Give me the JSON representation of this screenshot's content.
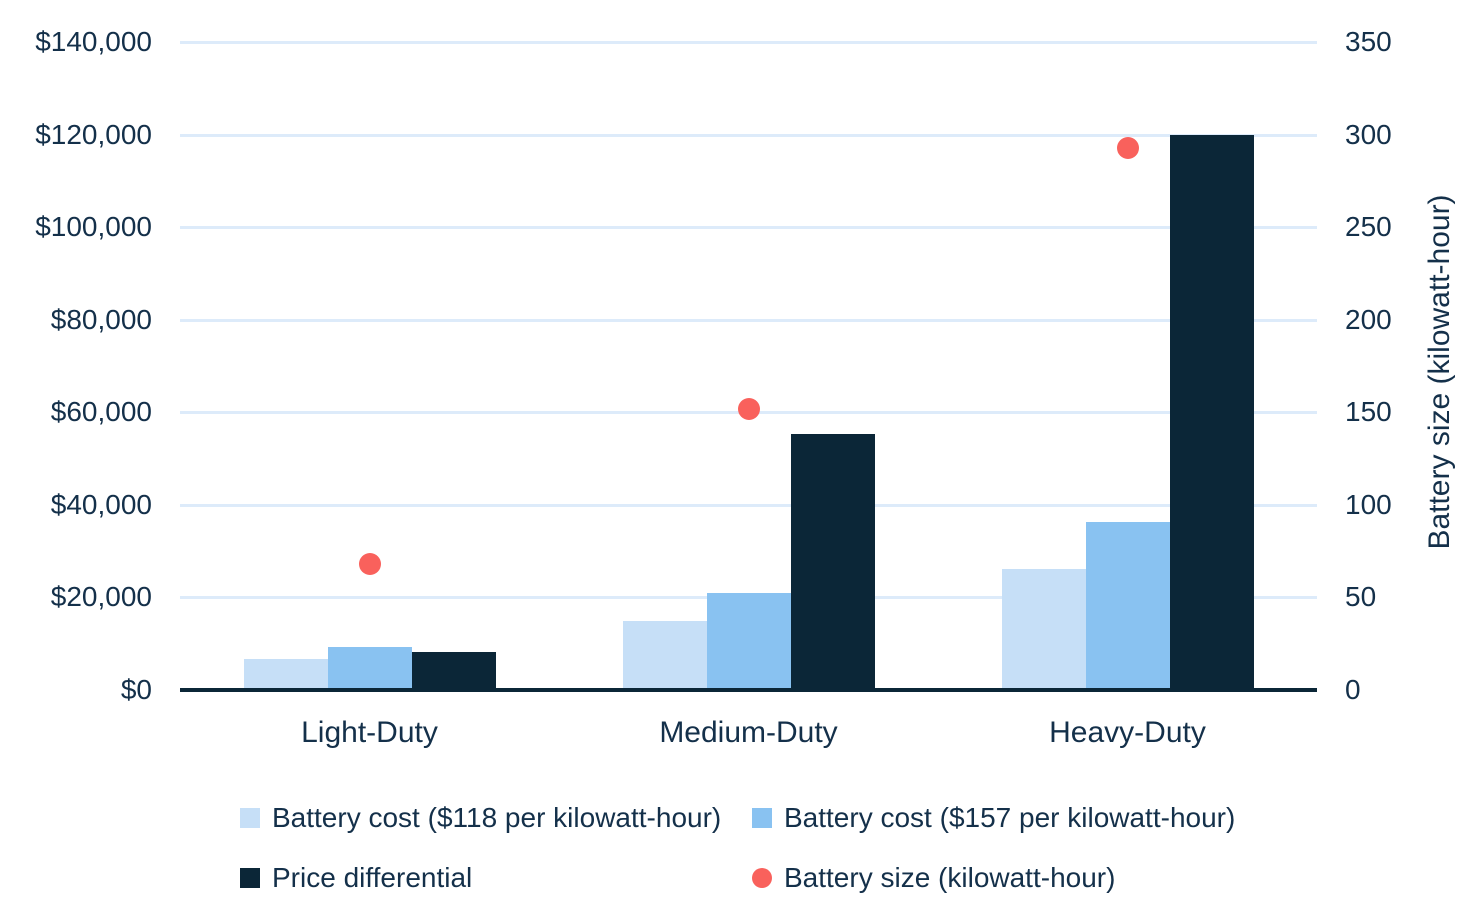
{
  "chart_data": {
    "type": "bar",
    "title": "",
    "categories": [
      "Light-Duty",
      "Medium-Duty",
      "Heavy-Duty"
    ],
    "series": [
      {
        "name": "Battery cost ($118 per kilowatt-hour)",
        "type": "bar",
        "axis": "left",
        "color": "#c6dff7",
        "values": [
          6700,
          15000,
          26100
        ]
      },
      {
        "name": "Battery cost ($157 per kilowatt-hour)",
        "type": "bar",
        "axis": "left",
        "color": "#89c2f1",
        "values": [
          9300,
          21000,
          36400
        ]
      },
      {
        "name": "Price differential",
        "type": "bar",
        "axis": "left",
        "color": "#0b2637",
        "values": [
          8300,
          55300,
          120000
        ]
      },
      {
        "name": "Battery size (kilowatt-hour)",
        "type": "scatter",
        "axis": "right",
        "color": "#f9615c",
        "values": [
          68,
          152,
          293
        ]
      }
    ],
    "left_axis": {
      "min": 0,
      "max": 140000,
      "step": 20000,
      "tick_labels": [
        "$0",
        "$20,000",
        "$40,000",
        "$60,000",
        "$80,000",
        "$100,000",
        "$120,000",
        "$140,000"
      ]
    },
    "right_axis": {
      "min": 0,
      "max": 350,
      "step": 50,
      "title": "Battery size (kilowatt-hour)",
      "tick_labels": [
        "0",
        "50",
        "100",
        "150",
        "200",
        "250",
        "300",
        "350"
      ]
    },
    "grid": true,
    "legend_position": "bottom",
    "colors": {
      "text": "#14304a",
      "gridline": "#ddebfa",
      "axis_line": "#0b2637",
      "background": "#ffffff",
      "bar_light_blue": "#c6dff7",
      "bar_medium_blue": "#89c2f1",
      "bar_dark_navy": "#0b2637",
      "point_red": "#f9615c"
    }
  },
  "legend": {
    "rows": [
      [
        {
          "label": "Battery cost ($118 per kilowatt-hour)",
          "marker": "square",
          "color": "#c6dff7"
        },
        {
          "label": "Battery cost ($157 per kilowatt-hour)",
          "marker": "square",
          "color": "#89c2f1"
        }
      ],
      [
        {
          "label": "Price differential",
          "marker": "square",
          "color": "#0b2637"
        },
        {
          "label": "Battery size (kilowatt-hour)",
          "marker": "circle",
          "color": "#f9615c"
        }
      ]
    ]
  }
}
